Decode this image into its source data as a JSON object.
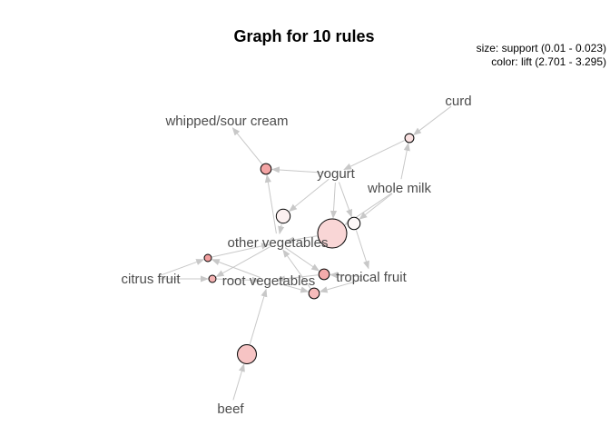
{
  "title": "Graph for 10 rules",
  "legend": {
    "size_line": "size: support (0.01 - 0.023)",
    "color_line": "color: lift (2.701 - 3.295)"
  },
  "colors": {
    "edge": "#c8c8c8",
    "label": "#4d4d4d",
    "lift_low": "#fdf8f8",
    "lift_high": "#f29e9e"
  },
  "items": [
    {
      "id": "curd",
      "label": "curd"
    },
    {
      "id": "whipped_sour_cream",
      "label": "whipped/sour cream"
    },
    {
      "id": "yogurt",
      "label": "yogurt"
    },
    {
      "id": "whole_milk",
      "label": "whole milk"
    },
    {
      "id": "other_vegetables",
      "label": "other vegetables"
    },
    {
      "id": "citrus_fruit",
      "label": "citrus fruit"
    },
    {
      "id": "root_vegetables",
      "label": "root vegetables"
    },
    {
      "id": "tropical_fruit",
      "label": "tropical fruit"
    },
    {
      "id": "beef",
      "label": "beef"
    }
  ],
  "rules": [
    {
      "id": "r1",
      "support": 0.011,
      "lift": 2.85,
      "lhs": [
        "curd",
        "whole_milk"
      ],
      "rhs": "yogurt"
    },
    {
      "id": "r2",
      "support": 0.012,
      "lift": 3.25,
      "lhs": [
        "yogurt",
        "other_vegetables"
      ],
      "rhs": "whipped_sour_cream"
    },
    {
      "id": "r3",
      "support": 0.014,
      "lift": 2.75,
      "lhs": [
        "yogurt"
      ],
      "rhs": "other_vegetables"
    },
    {
      "id": "r4",
      "support": 0.023,
      "lift": 2.92,
      "lhs": [
        "whole_milk",
        "yogurt"
      ],
      "rhs": "other_vegetables"
    },
    {
      "id": "r5",
      "support": 0.013,
      "lift": 2.7,
      "lhs": [
        "whole_milk",
        "yogurt"
      ],
      "rhs": "tropical_fruit"
    },
    {
      "id": "r6",
      "support": 0.01,
      "lift": 3.29,
      "lhs": [
        "citrus_fruit",
        "root_vegetables"
      ],
      "rhs": "other_vegetables"
    },
    {
      "id": "r7",
      "support": 0.01,
      "lift": 3.15,
      "lhs": [
        "citrus_fruit",
        "other_vegetables"
      ],
      "rhs": "root_vegetables"
    },
    {
      "id": "r8",
      "support": 0.012,
      "lift": 3.2,
      "lhs": [
        "other_vegetables",
        "tropical_fruit"
      ],
      "rhs": "root_vegetables"
    },
    {
      "id": "r9",
      "support": 0.012,
      "lift": 3.1,
      "lhs": [
        "root_vegetables",
        "tropical_fruit"
      ],
      "rhs": "other_vegetables"
    },
    {
      "id": "r10",
      "support": 0.017,
      "lift": 3.04,
      "lhs": [
        "beef"
      ],
      "rhs": "root_vegetables"
    }
  ]
}
